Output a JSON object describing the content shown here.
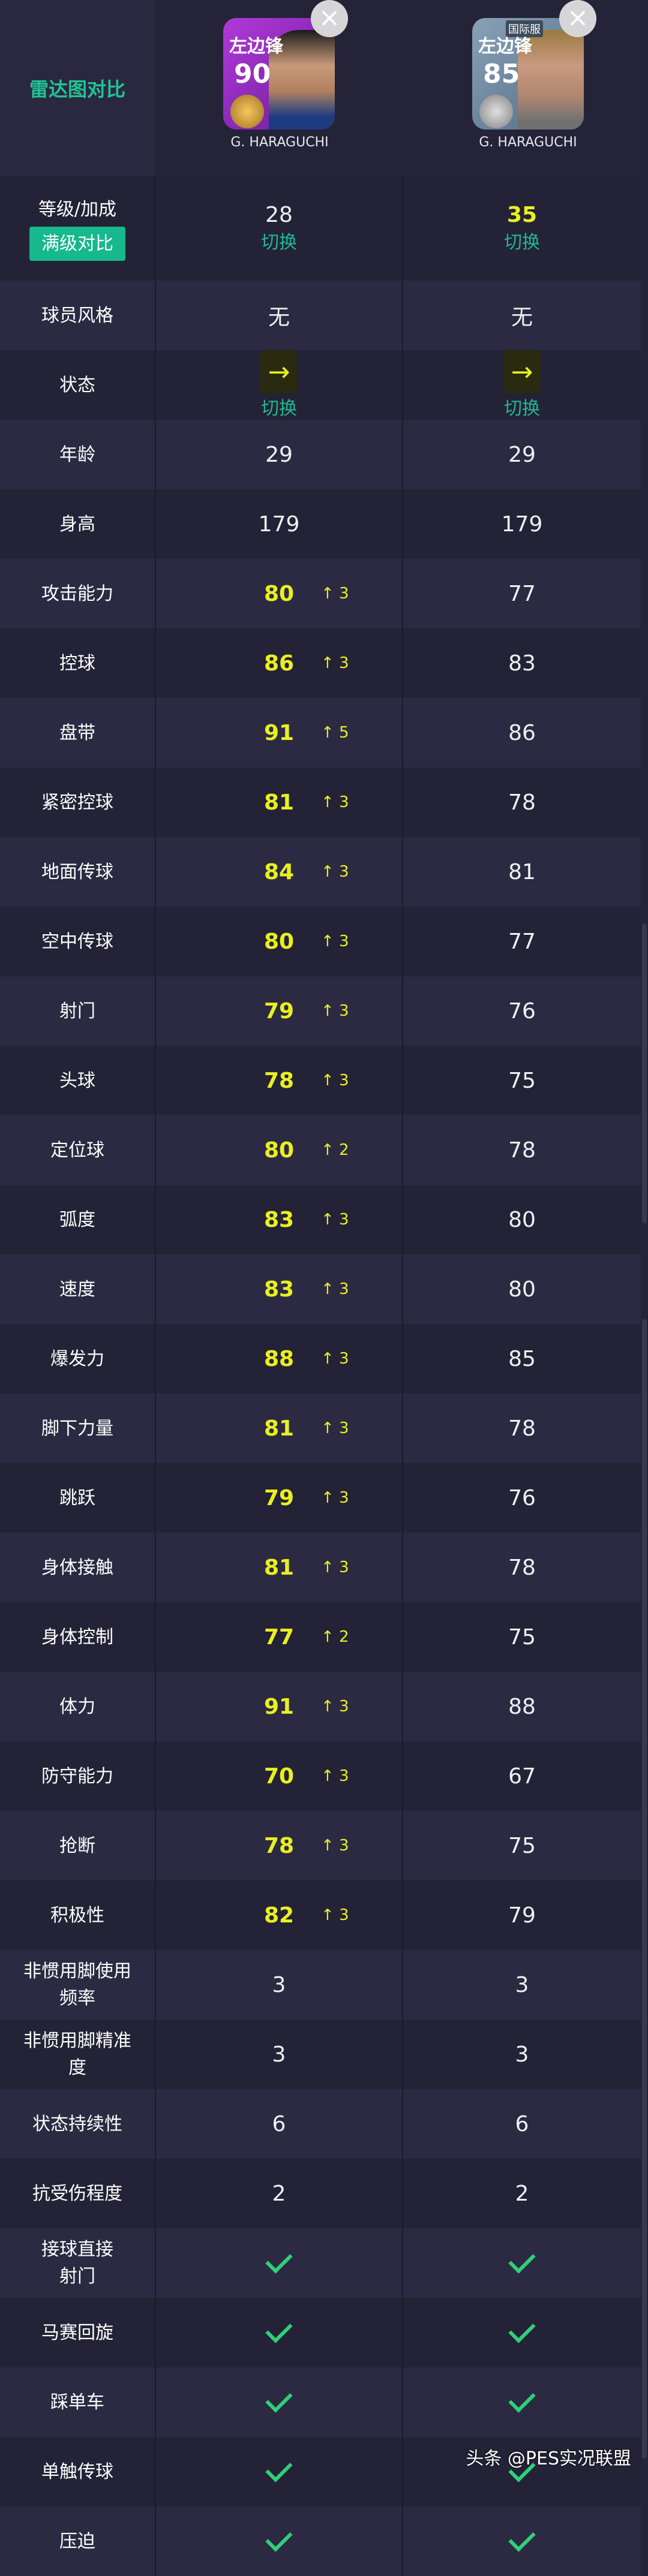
{
  "header": {
    "radar_label": "雷达图对比",
    "players": [
      {
        "position": "左边锋",
        "rating": "90",
        "name": "G. HARAGUCHI",
        "card_color": "#9b2fc8",
        "server_badge": ""
      },
      {
        "position": "左边锋",
        "rating": "85",
        "name": "G. HARAGUCHI",
        "card_color": "#6f8aa3",
        "server_badge": "国际服"
      }
    ],
    "close_icon": "×"
  },
  "level_row": {
    "label": "等级/加成",
    "full_level_button": "满级对比",
    "values": [
      "28",
      "35"
    ],
    "switch_label": "切换"
  },
  "style_row": {
    "label": "球员风格",
    "values": [
      "无",
      "无"
    ]
  },
  "condition_row": {
    "label": "状态",
    "switch_label": "切换",
    "arrow": "→"
  },
  "rows": [
    {
      "label": "年龄",
      "v1": "29",
      "v2": "29"
    },
    {
      "label": "身高",
      "v1": "179",
      "v2": "179"
    }
  ],
  "stats": [
    {
      "label": "攻击能力",
      "v1": "80",
      "boost": "↑ 3",
      "v2": "77"
    },
    {
      "label": "控球",
      "v1": "86",
      "boost": "↑ 3",
      "v2": "83"
    },
    {
      "label": "盘带",
      "v1": "91",
      "boost": "↑ 5",
      "v2": "86"
    },
    {
      "label": "紧密控球",
      "v1": "81",
      "boost": "↑ 3",
      "v2": "78"
    },
    {
      "label": "地面传球",
      "v1": "84",
      "boost": "↑ 3",
      "v2": "81"
    },
    {
      "label": "空中传球",
      "v1": "80",
      "boost": "↑ 3",
      "v2": "77"
    },
    {
      "label": "射门",
      "v1": "79",
      "boost": "↑ 3",
      "v2": "76"
    },
    {
      "label": "头球",
      "v1": "78",
      "boost": "↑ 3",
      "v2": "75"
    },
    {
      "label": "定位球",
      "v1": "80",
      "boost": "↑ 2",
      "v2": "78"
    },
    {
      "label": "弧度",
      "v1": "83",
      "boost": "↑ 3",
      "v2": "80"
    },
    {
      "label": "速度",
      "v1": "83",
      "boost": "↑ 3",
      "v2": "80"
    },
    {
      "label": "爆发力",
      "v1": "88",
      "boost": "↑ 3",
      "v2": "85"
    },
    {
      "label": "脚下力量",
      "v1": "81",
      "boost": "↑ 3",
      "v2": "78"
    },
    {
      "label": "跳跃",
      "v1": "79",
      "boost": "↑ 3",
      "v2": "76"
    },
    {
      "label": "身体接触",
      "v1": "81",
      "boost": "↑ 3",
      "v2": "78"
    },
    {
      "label": "身体控制",
      "v1": "77",
      "boost": "↑ 2",
      "v2": "75"
    },
    {
      "label": "体力",
      "v1": "91",
      "boost": "↑ 3",
      "v2": "88"
    },
    {
      "label": "防守能力",
      "v1": "70",
      "boost": "↑ 3",
      "v2": "67"
    },
    {
      "label": "抢断",
      "v1": "78",
      "boost": "↑ 3",
      "v2": "75"
    },
    {
      "label": "积极性",
      "v1": "82",
      "boost": "↑ 3",
      "v2": "79"
    }
  ],
  "misc": [
    {
      "label": "非惯用脚使用频率",
      "v1": "3",
      "v2": "3"
    },
    {
      "label": "非惯用脚精准度",
      "v1": "3",
      "v2": "3"
    },
    {
      "label": "状态持续性",
      "v1": "6",
      "v2": "6"
    },
    {
      "label": "抗受伤程度",
      "v1": "2",
      "v2": "2"
    }
  ],
  "skills": [
    {
      "label": "接球直接射门"
    },
    {
      "label": "马赛回旋"
    },
    {
      "label": "踩单车"
    },
    {
      "label": "单触传球"
    },
    {
      "label": "压迫"
    }
  ],
  "watermark": "头条 @PES实况联盟",
  "colors": {
    "accent": "#1fc595",
    "highlight": "#e8f020",
    "check": "#2fd07a",
    "background": "#252338"
  }
}
